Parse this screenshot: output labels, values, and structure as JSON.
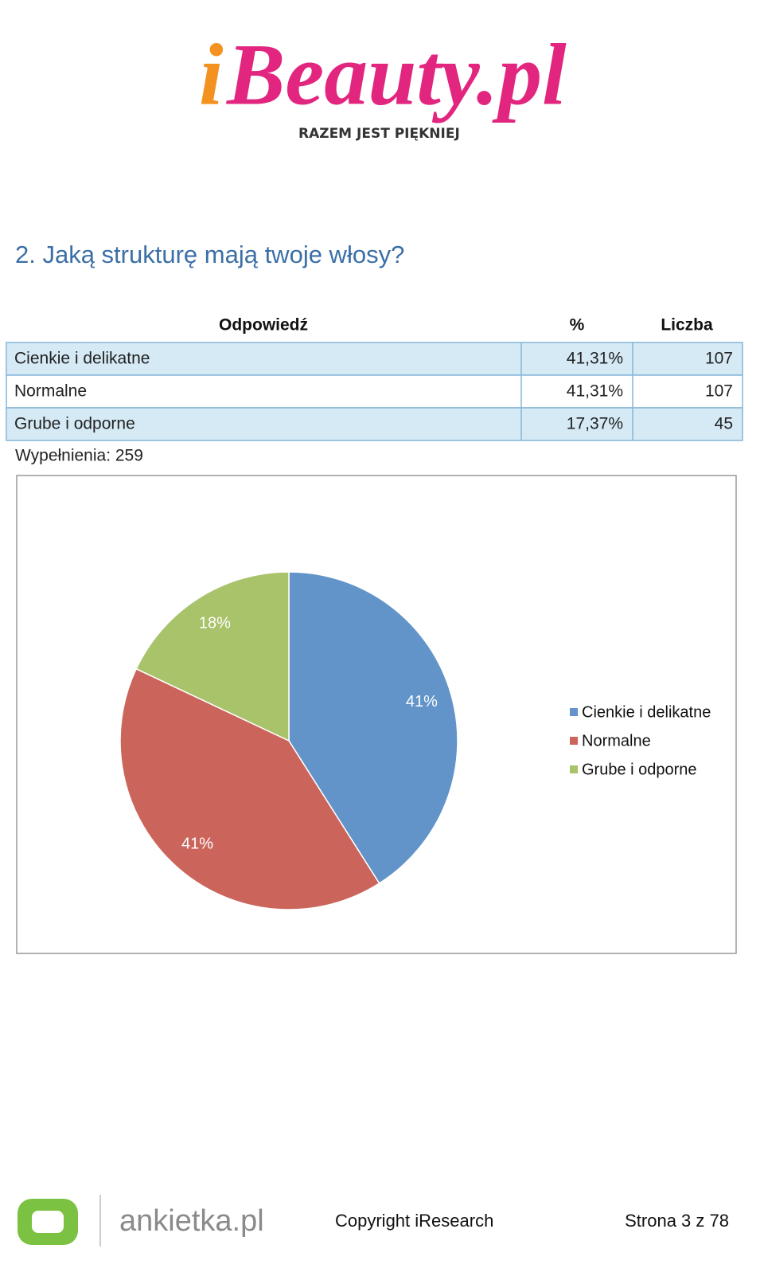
{
  "logo": {
    "prefix": "i",
    "name": "Beauty.pl",
    "tagline": "RAZEM JEST PIĘKNIEJ"
  },
  "question": "2. Jaką strukturę mają twoje włosy?",
  "table": {
    "columns": [
      "Odpowiedź",
      "%",
      "Liczba"
    ],
    "rows": [
      [
        "Cienkie i delikatne",
        "41,31%",
        "107"
      ],
      [
        "Normalne",
        "41,31%",
        "107"
      ],
      [
        "Grube i odporne",
        "17,37%",
        "45"
      ]
    ]
  },
  "responses": "Wypełnienia: 259",
  "chart_data": {
    "type": "pie",
    "categories": [
      "Cienkie i delikatne",
      "Normalne",
      "Grube i odporne"
    ],
    "values": [
      41,
      41,
      18
    ],
    "value_labels": [
      "41%",
      "41%",
      "18%"
    ],
    "colors": [
      "#6294c9",
      "#cb655c",
      "#a9c36b"
    ],
    "legend": "right"
  },
  "footer": {
    "brand": "ankietka.pl",
    "copyright": "Copyright iResearch",
    "page": "Strona 3 z 78"
  }
}
